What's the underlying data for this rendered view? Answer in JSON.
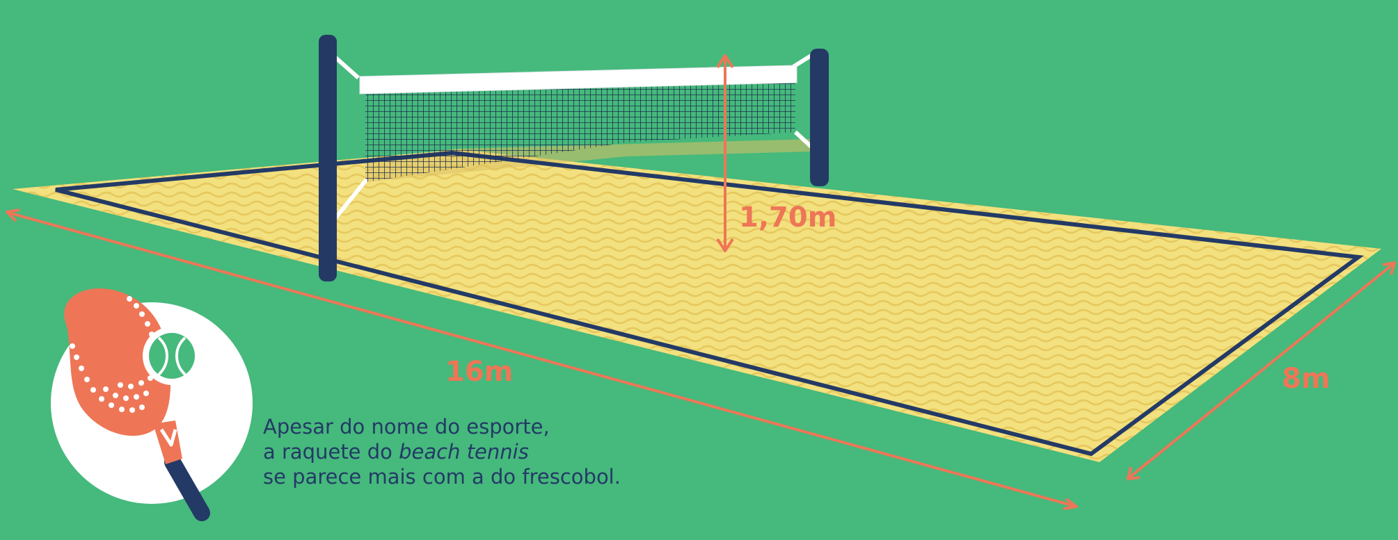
{
  "measurements": {
    "length": "16m",
    "width": "8m",
    "net_height": "1,70m"
  },
  "caption": {
    "line1": "Apesar do nome do esporte,",
    "line2_prefix": "a raquete do ",
    "line2_emphasis": "beach tennis",
    "line3": "se parece mais com a do frescobol."
  },
  "icons": {
    "racket": "beach-tennis-racket-icon",
    "ball": "tennis-ball-icon"
  },
  "colors": {
    "background": "#46B97C",
    "sand": "#F3E07E",
    "sand_wave": "#E7CC63",
    "court_line": "#233A66",
    "measure": "#EE7657",
    "net_band": "#FFFFFF",
    "post": "#243A64",
    "badge": "#FFFFFF"
  }
}
